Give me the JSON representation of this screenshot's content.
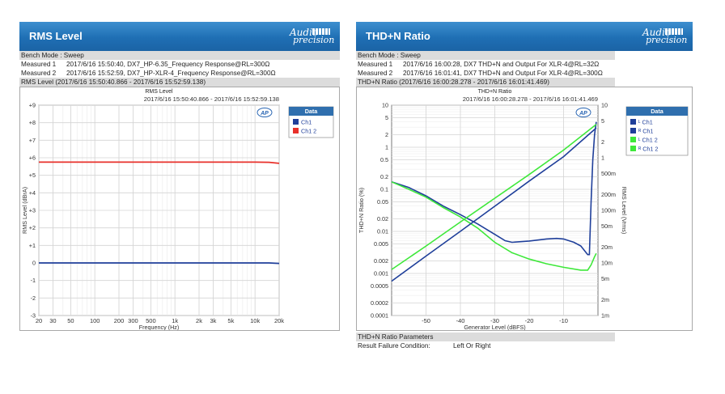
{
  "left": {
    "title": "RMS Level",
    "logo_line1": "Audio",
    "logo_line2": "precision",
    "bench_mode": "Bench Mode : Sweep",
    "measured": [
      {
        "label": "Measured 1",
        "value": "2017/6/16 15:50:40, DX7_HP-6.35_Frequency Response@RL=300Ω"
      },
      {
        "label": "Measured 2",
        "value": "2017/6/16 15:52:59, DX7_HP-XLR-4_Frequency Response@RL=300Ω"
      }
    ],
    "section_title": "RMS Level (2017/6/16 15:50:40.866 - 2017/6/16 15:52:59.138)",
    "legend_title": "Data",
    "legend": [
      {
        "name": "Ch1",
        "color": "#1f3f9a"
      },
      {
        "name": "Ch1 2",
        "color": "#e8302a"
      }
    ]
  },
  "right": {
    "title": "THD+N Ratio",
    "logo_line1": "Audio",
    "logo_line2": "precision",
    "bench_mode": "Bench Mode : Sweep",
    "measured": [
      {
        "label": "Measured 1",
        "value": "2017/6/16 16:00:28, DX7 THD+N and Output For XLR-4@RL=32Ω"
      },
      {
        "label": "Measured 2",
        "value": "2017/6/16 16:01:41, DX7 THD+N and Output For XLR-4@RL=300Ω"
      }
    ],
    "section_title": "THD+N Ratio (2017/6/16 16:00:28.278 - 2017/6/16 16:01:41.469)",
    "legend_title": "Data",
    "legend": [
      {
        "name": "ᴸ Ch1",
        "color": "#1f3f9a"
      },
      {
        "name": "ᴿ Ch1",
        "color": "#1f3f9a"
      },
      {
        "name": "ᴸ Ch1 2",
        "color": "#3ee83a"
      },
      {
        "name": "ᴿ Ch1 2",
        "color": "#3ee83a"
      }
    ],
    "params_title": "THD+N Ratio Parameters",
    "params_key": "Result Failure Condition:",
    "params_value": "Left Or Right"
  },
  "chart_data": [
    {
      "type": "line",
      "title": "RMS Level",
      "subtitle": "2017/6/16 15:50:40.866 - 2017/6/16 15:52:59.138",
      "xlabel": "Frequency (Hz)",
      "ylabel": "RMS Level (dBrA)",
      "xscale": "log",
      "xlim": [
        20,
        20000
      ],
      "ylim": [
        -3,
        9
      ],
      "x_ticks": [
        20,
        30,
        50,
        100,
        200,
        300,
        500,
        1000,
        2000,
        3000,
        5000,
        10000,
        20000
      ],
      "x_tick_labels": [
        "20",
        "30",
        "50",
        "100",
        "200",
        "300",
        "500",
        "1k",
        "2k",
        "3k",
        "5k",
        "10k",
        "20k"
      ],
      "y_ticks": [
        -3,
        -2,
        -1,
        0,
        1,
        2,
        3,
        4,
        5,
        6,
        7,
        8,
        9
      ],
      "y_tick_labels": [
        "-3",
        "-2",
        "-1",
        "0",
        "+1",
        "+2",
        "+3",
        "+4",
        "+5",
        "+6",
        "+7",
        "+8",
        "+9"
      ],
      "grid": true,
      "legend_position": "right",
      "series": [
        {
          "name": "Ch1",
          "color": "#1f3f9a",
          "x": [
            20,
            100,
            1000,
            10000,
            15000,
            20000
          ],
          "y": [
            0.0,
            0.0,
            0.0,
            0.0,
            0.0,
            -0.03
          ]
        },
        {
          "name": "Ch1 2",
          "color": "#e8302a",
          "x": [
            20,
            100,
            1000,
            10000,
            15000,
            20000
          ],
          "y": [
            5.75,
            5.75,
            5.75,
            5.75,
            5.74,
            5.68
          ]
        }
      ]
    },
    {
      "type": "line",
      "title": "THD+N Ratio",
      "subtitle": "2017/6/16 16:00:28.278 - 2017/6/16 16:01:41.469",
      "xlabel": "Generator Level (dBFS)",
      "ylabel": "THD+N Ratio (%)",
      "y2label": "RMS Level (Vrms)",
      "xlim": [
        -60,
        0
      ],
      "ylim": [
        0.0001,
        10
      ],
      "yscale": "log",
      "y2lim": [
        0.001,
        10
      ],
      "y2scale": "log",
      "x_ticks": [
        -50,
        -40,
        -30,
        -20,
        -10
      ],
      "y_ticks": [
        0.0001,
        0.0002,
        0.0005,
        0.001,
        0.002,
        0.005,
        0.01,
        0.02,
        0.05,
        0.1,
        0.2,
        0.5,
        1,
        2,
        5,
        10
      ],
      "y_tick_labels": [
        "0.0001",
        "0.0002",
        "0.0005",
        "0.001",
        "0.002",
        "0.005",
        "0.01",
        "0.02",
        "0.05",
        "0.1",
        "0.2",
        "0.5",
        "1",
        "2",
        "5",
        "10"
      ],
      "y2_ticks": [
        0.001,
        0.002,
        0.005,
        0.01,
        0.02,
        0.05,
        0.1,
        0.2,
        0.5,
        1,
        2,
        5,
        10
      ],
      "y2_tick_labels": [
        "1m",
        "2m",
        "5m",
        "10m",
        "20m",
        "50m",
        "100m",
        "200m",
        "500m",
        "1",
        "2",
        "5",
        "10"
      ],
      "grid": true,
      "legend_position": "right",
      "series": [
        {
          "name": "ᴸ Ch1",
          "color": "#1f3f9a",
          "axis": "left",
          "x": [
            -60,
            -55,
            -50,
            -45,
            -40,
            -35,
            -30,
            -27,
            -25,
            -20,
            -15,
            -12,
            -10,
            -7,
            -5,
            -3,
            -2.5,
            -2,
            -1.5,
            -1,
            -0.5
          ],
          "y": [
            0.15,
            0.11,
            0.07,
            0.04,
            0.025,
            0.015,
            0.0085,
            0.006,
            0.0055,
            0.0059,
            0.0066,
            0.0068,
            0.0066,
            0.0055,
            0.0045,
            0.0028,
            0.0028,
            0.05,
            0.5,
            2.0,
            4.0
          ]
        },
        {
          "name": "ᴸ Ch1 2",
          "color": "#3ee83a",
          "axis": "left",
          "x": [
            -60,
            -55,
            -50,
            -45,
            -40,
            -35,
            -30,
            -25,
            -20,
            -15,
            -10,
            -5,
            -3,
            -2,
            -1,
            -0.5
          ],
          "y": [
            0.15,
            0.1,
            0.065,
            0.037,
            0.022,
            0.012,
            0.0055,
            0.0031,
            0.0022,
            0.0017,
            0.0014,
            0.0012,
            0.0012,
            0.0016,
            0.0025,
            0.003
          ]
        },
        {
          "name": "ᴿ Ch1",
          "color": "#1f3f9a",
          "axis": "right",
          "x": [
            -60,
            -50,
            -40,
            -30,
            -20,
            -10,
            -0.5
          ],
          "y": [
            0.0045,
            0.0135,
            0.04,
            0.12,
            0.36,
            1.05,
            3.7
          ]
        },
        {
          "name": "ᴿ Ch1 2",
          "color": "#3ee83a",
          "axis": "right",
          "x": [
            -60,
            -50,
            -40,
            -30,
            -20,
            -10,
            -0.5
          ],
          "y": [
            0.0075,
            0.021,
            0.06,
            0.17,
            0.48,
            1.4,
            4.3
          ]
        }
      ]
    }
  ]
}
